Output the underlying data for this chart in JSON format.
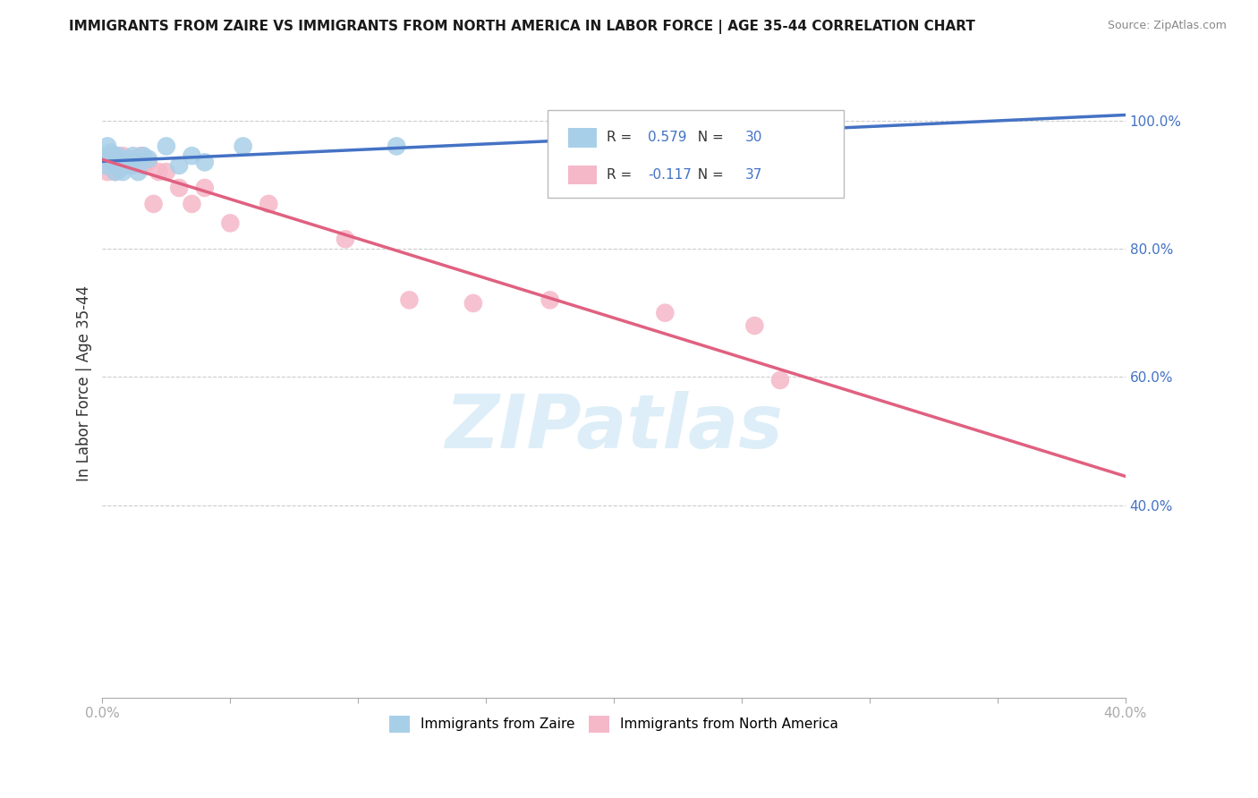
{
  "title": "IMMIGRANTS FROM ZAIRE VS IMMIGRANTS FROM NORTH AMERICA IN LABOR FORCE | AGE 35-44 CORRELATION CHART",
  "source": "Source: ZipAtlas.com",
  "ylabel": "In Labor Force | Age 35-44",
  "xlim": [
    0.0,
    0.4
  ],
  "ylim": [
    0.1,
    1.08
  ],
  "xtick_positions": [
    0.0,
    0.05,
    0.1,
    0.15,
    0.2,
    0.25,
    0.3,
    0.35,
    0.4
  ],
  "xtick_labels": [
    "0.0%",
    "",
    "",
    "",
    "",
    "",
    "",
    "",
    "40.0%"
  ],
  "ytick_vals_right": [
    1.0,
    0.8,
    0.6,
    0.4
  ],
  "ytick_labels_right": [
    "100.0%",
    "80.0%",
    "60.0%",
    "40.0%"
  ],
  "zaire_R": 0.579,
  "zaire_N": 30,
  "na_R": -0.117,
  "na_N": 37,
  "zaire_color": "#a8cfe8",
  "na_color": "#f5b8c8",
  "zaire_line_color": "#4472c4",
  "na_line_color": "#e06080",
  "watermark_text": "ZIPatlas",
  "watermark_color": "#ddeef8",
  "background_color": "#ffffff",
  "grid_color": "#cccccc",
  "legend_R_N_color": "#4472c4",
  "zaire_x": [
    0.001,
    0.002,
    0.002,
    0.003,
    0.003,
    0.004,
    0.004,
    0.005,
    0.005,
    0.006,
    0.006,
    0.007,
    0.007,
    0.008,
    0.008,
    0.009,
    0.01,
    0.01,
    0.011,
    0.012,
    0.014,
    0.016,
    0.018,
    0.025,
    0.03,
    0.035,
    0.04,
    0.055,
    0.115,
    0.28
  ],
  "zaire_y": [
    0.93,
    0.945,
    0.96,
    0.94,
    0.95,
    0.935,
    0.945,
    0.92,
    0.94,
    0.93,
    0.945,
    0.925,
    0.94,
    0.935,
    0.92,
    0.935,
    0.94,
    0.935,
    0.93,
    0.945,
    0.92,
    0.945,
    0.94,
    0.96,
    0.93,
    0.945,
    0.935,
    0.96,
    0.96,
    0.985
  ],
  "na_x": [
    0.001,
    0.002,
    0.002,
    0.003,
    0.004,
    0.004,
    0.005,
    0.005,
    0.006,
    0.006,
    0.007,
    0.008,
    0.008,
    0.009,
    0.01,
    0.01,
    0.011,
    0.012,
    0.013,
    0.015,
    0.016,
    0.018,
    0.02,
    0.022,
    0.025,
    0.03,
    0.035,
    0.04,
    0.05,
    0.065,
    0.095,
    0.12,
    0.145,
    0.175,
    0.22,
    0.255,
    0.265
  ],
  "na_y": [
    0.93,
    0.92,
    0.94,
    0.935,
    0.93,
    0.945,
    0.94,
    0.92,
    0.935,
    0.945,
    0.935,
    0.945,
    0.94,
    0.935,
    0.935,
    0.94,
    0.93,
    0.93,
    0.94,
    0.945,
    0.93,
    0.935,
    0.87,
    0.92,
    0.92,
    0.895,
    0.87,
    0.895,
    0.84,
    0.87,
    0.815,
    0.72,
    0.715,
    0.72,
    0.7,
    0.68,
    0.595
  ]
}
